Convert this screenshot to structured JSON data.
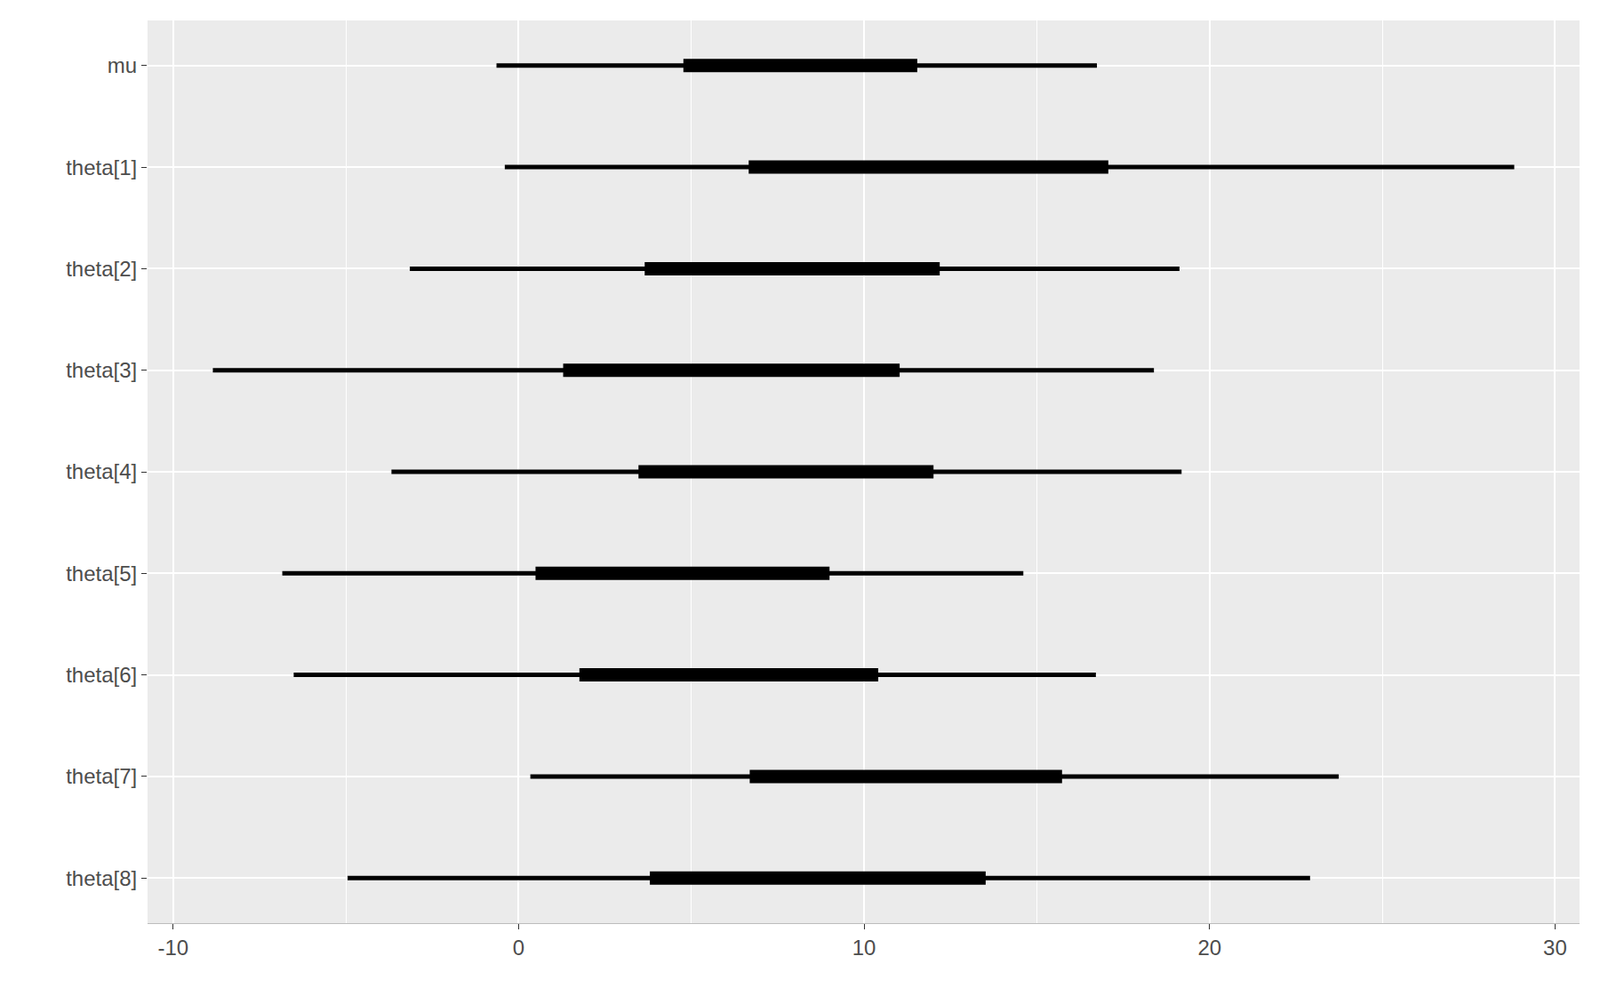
{
  "chart_data": {
    "type": "interval",
    "orientation": "horizontal",
    "categories": [
      "mu",
      "theta[1]",
      "theta[2]",
      "theta[3]",
      "theta[4]",
      "theta[5]",
      "theta[6]",
      "theta[7]",
      "theta[8]"
    ],
    "outer_low": [
      -0.64,
      -0.4,
      -3.15,
      -8.85,
      -3.68,
      -6.84,
      -6.51,
      0.34,
      -4.95
    ],
    "outer_high": [
      16.74,
      28.82,
      19.13,
      18.39,
      19.19,
      14.61,
      16.71,
      23.74,
      22.91
    ],
    "inner_low": [
      4.77,
      6.66,
      3.65,
      1.29,
      3.47,
      0.49,
      1.76,
      6.69,
      3.8
    ],
    "inner_high": [
      11.54,
      17.07,
      12.19,
      11.03,
      12.01,
      9.0,
      10.41,
      15.73,
      13.52
    ],
    "color": "#000000",
    "xlim": [
      -10.74,
      30.71
    ],
    "xticks": [
      -10,
      0,
      10,
      20,
      30
    ],
    "grid": true
  }
}
